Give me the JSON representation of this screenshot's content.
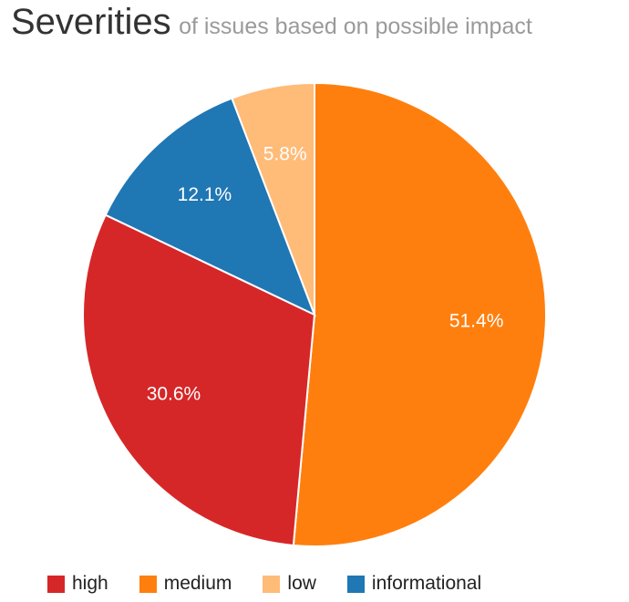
{
  "header": {
    "title": "Severities",
    "subtitle": "of issues based on possible impact"
  },
  "chart_data": {
    "type": "pie",
    "title": "Severities",
    "subtitle": "of issues based on possible impact",
    "slices": [
      {
        "name": "medium",
        "value": 51.4,
        "label": "51.4%",
        "color": "#ff7f0e"
      },
      {
        "name": "high",
        "value": 30.6,
        "label": "30.6%",
        "color": "#d62728"
      },
      {
        "name": "informational",
        "value": 12.1,
        "label": "12.1%",
        "color": "#1f77b4"
      },
      {
        "name": "low",
        "value": 5.8,
        "label": "5.8%",
        "color": "#ffbb78"
      }
    ],
    "start_angle_deg": 0,
    "direction": "clockwise",
    "legend": {
      "position": "bottom",
      "items": [
        {
          "name": "high",
          "color": "#d62728"
        },
        {
          "name": "medium",
          "color": "#ff7f0e"
        },
        {
          "name": "low",
          "color": "#ffbb78"
        },
        {
          "name": "informational",
          "color": "#1f77b4"
        }
      ]
    }
  }
}
